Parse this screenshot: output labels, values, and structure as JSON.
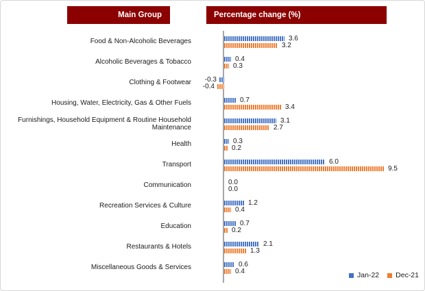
{
  "header": {
    "main_group": "Main Group",
    "value_axis": "Percentage change (%)",
    "bg_color": "#8B0000",
    "text_color": "#FFFFFF"
  },
  "chart_data": {
    "type": "bar",
    "orientation": "horizontal",
    "title": "Percentage change (%)",
    "categories": [
      "Food & Non-Alcoholic Beverages",
      "Alcoholic Beverages & Tobacco",
      "Clothing & Footwear",
      "Housing, Water, Electricity, Gas & Other Fuels",
      "Furnishings, Household Equipment & Routine Household\nMaintenance",
      "Health",
      "Transport",
      "Communication",
      "Recreation Services & Culture",
      "Education",
      "Restaurants & Hotels",
      "Miscellaneous Goods & Services"
    ],
    "series": [
      {
        "name": "Jan-22",
        "color": "#4472C4",
        "values": [
          3.6,
          0.4,
          -0.3,
          0.7,
          3.1,
          0.3,
          6.0,
          0.0,
          1.2,
          0.7,
          2.1,
          0.6
        ]
      },
      {
        "name": "Dec-21",
        "color": "#ED7D31",
        "values": [
          3.2,
          0.3,
          -0.4,
          3.4,
          2.7,
          0.2,
          9.5,
          0.0,
          0.4,
          0.2,
          1.3,
          0.4
        ]
      }
    ],
    "data_labels": "one-decimal",
    "bar_fill_pattern": "vertical-stripes",
    "axis_color": "#A6A6A6",
    "xlim": [
      -0.5,
      10
    ],
    "grid": "off",
    "legend_position": "bottom-right"
  }
}
